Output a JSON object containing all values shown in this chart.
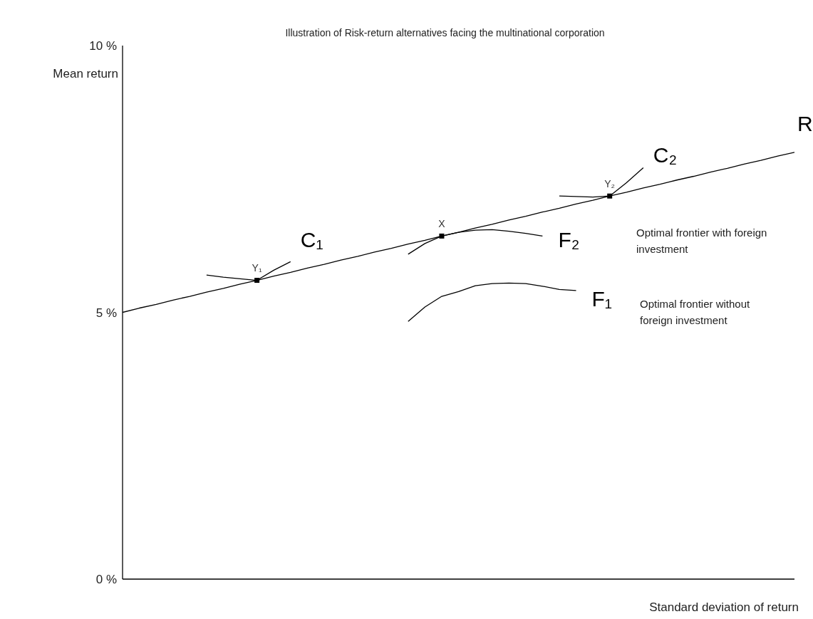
{
  "chart_data": {
    "type": "line",
    "title": "Illustration of Risk-return alternatives facing the multinational corporation",
    "xlabel": "Standard deviation of return",
    "ylabel": "Mean return",
    "categories": [
      null,
      null,
      null,
      null,
      null,
      null,
      null,
      null,
      null,
      null,
      null,
      null,
      null,
      null,
      null,
      null,
      null,
      null,
      null,
      null,
      null,
      null,
      null,
      null,
      null,
      null,
      null,
      null,
      null,
      null,
      null,
      null,
      null,
      null,
      null,
      null,
      null,
      null,
      null,
      null,
      null
    ],
    "series": [
      {
        "name": "R",
        "color": "#000000",
        "values": [
          5,
          5.08,
          5.15,
          5.23,
          5.3,
          5.38,
          5.45,
          5.53,
          5.6,
          5.68,
          5.75,
          5.83,
          5.9,
          5.98,
          6.05,
          6.13,
          6.2,
          6.28,
          6.35,
          6.43,
          6.5,
          6.58,
          6.65,
          6.73,
          6.8,
          6.88,
          6.95,
          7.03,
          7.1,
          7.18,
          7.25,
          7.33,
          7.4,
          7.48,
          7.55,
          7.63,
          7.7,
          7.78,
          7.85,
          7.93,
          8.0
        ]
      },
      {
        "name": "C₁",
        "color": "#000000",
        "values": [
          null,
          null,
          null,
          null,
          null,
          5.7,
          5.66,
          5.63,
          5.6,
          5.79,
          5.95,
          null,
          null,
          null,
          null,
          null,
          null,
          null,
          null,
          null,
          null,
          null,
          null,
          null,
          null,
          null,
          null,
          null,
          null,
          null,
          null,
          null,
          null,
          null,
          null,
          null,
          null,
          null,
          null,
          null,
          null
        ]
      },
      {
        "name": "C₂",
        "color": "#000000",
        "values": [
          null,
          null,
          null,
          null,
          null,
          null,
          null,
          null,
          null,
          null,
          null,
          null,
          null,
          null,
          null,
          null,
          null,
          null,
          null,
          null,
          null,
          null,
          null,
          null,
          null,
          null,
          7.18,
          7.17,
          7.16,
          7.18,
          7.43,
          7.71,
          null,
          null,
          null,
          null,
          null,
          null,
          null,
          null,
          null
        ]
      },
      {
        "name": "F₂",
        "color": "#000000",
        "values": [
          null,
          null,
          null,
          null,
          null,
          null,
          null,
          null,
          null,
          null,
          null,
          null,
          null,
          null,
          null,
          null,
          null,
          6.09,
          6.29,
          6.43,
          6.5,
          6.54,
          6.55,
          6.52,
          6.48,
          6.43,
          null,
          null,
          null,
          null,
          null,
          null,
          null,
          null,
          null,
          null,
          null,
          null,
          null,
          null,
          null
        ]
      },
      {
        "name": "F₁",
        "color": "#000000",
        "values": [
          null,
          null,
          null,
          null,
          null,
          null,
          null,
          null,
          null,
          null,
          null,
          null,
          null,
          null,
          null,
          null,
          null,
          4.83,
          5.1,
          5.3,
          5.39,
          5.5,
          5.54,
          5.55,
          5.54,
          5.49,
          5.43,
          5.41,
          null,
          null,
          null,
          null,
          null,
          null,
          null,
          null,
          null,
          null,
          null,
          null,
          null
        ]
      },
      {
        "name": "Y₁",
        "type": "scatter",
        "marker": "square",
        "color": "#000000",
        "values": [
          null,
          null,
          null,
          null,
          null,
          null,
          null,
          null,
          5.6,
          null,
          null,
          null,
          null,
          null,
          null,
          null,
          null,
          null,
          null,
          null,
          null,
          null,
          null,
          null,
          null,
          null,
          null,
          null,
          null,
          null,
          null,
          null,
          null,
          null,
          null,
          null,
          null,
          null,
          null,
          null,
          null
        ]
      },
      {
        "name": "X",
        "type": "scatter",
        "marker": "square",
        "color": "#000000",
        "values": [
          null,
          null,
          null,
          null,
          null,
          null,
          null,
          null,
          null,
          null,
          null,
          null,
          null,
          null,
          null,
          null,
          null,
          null,
          null,
          6.43,
          null,
          null,
          null,
          null,
          null,
          null,
          null,
          null,
          null,
          null,
          null,
          null,
          null,
          null,
          null,
          null,
          null,
          null,
          null,
          null,
          null
        ]
      },
      {
        "name": "Y₂",
        "type": "scatter",
        "marker": "square",
        "color": "#000000",
        "values": [
          null,
          null,
          null,
          null,
          null,
          null,
          null,
          null,
          null,
          null,
          null,
          null,
          null,
          null,
          null,
          null,
          null,
          null,
          null,
          null,
          null,
          null,
          null,
          null,
          null,
          null,
          null,
          null,
          null,
          7.18,
          null,
          null,
          null,
          null,
          null,
          null,
          null,
          null,
          null,
          null,
          null
        ]
      }
    ],
    "marker": "none",
    "ylim": [
      0,
      10
    ],
    "yticks": [
      {
        "value": 0,
        "label": "0 %"
      },
      {
        "value": 5,
        "label": "5 %"
      },
      {
        "value": 10,
        "label": "10 %"
      }
    ],
    "tick_labels": "y",
    "annotations": [
      "Optimal frontier with foreign investment",
      "Optimal frontier without foreign investment"
    ]
  }
}
